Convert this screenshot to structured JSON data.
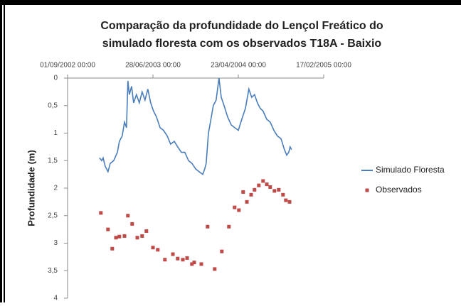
{
  "chart_data": {
    "type": "line",
    "title": [
      "Comparação da profundidade do Lençol Freático do",
      "simulado floresta com os observados T18A - Baixio"
    ],
    "y_label": "Profundidade (m)",
    "xlim": [
      "2002-09-01",
      "2005-02-17"
    ],
    "xticks": [
      {
        "value": "2002-09-01",
        "label": "01/09/2002 00:00"
      },
      {
        "value": "2003-06-28",
        "label": "28/06/2003 00:00"
      },
      {
        "value": "2004-04-23",
        "label": "23/04/2004 00:00"
      },
      {
        "value": "2005-02-17",
        "label": "17/02/2005 00:00"
      }
    ],
    "ylim": [
      0,
      4
    ],
    "y_inverted": true,
    "yticks": [
      0,
      {
        "value": 0.5,
        "label": "0,5"
      },
      1,
      {
        "value": 1.5,
        "label": "1,5"
      },
      2,
      {
        "value": 2.5,
        "label": "2,5"
      },
      3,
      {
        "value": 3.5,
        "label": "3,5"
      },
      4
    ],
    "grid": false,
    "legend": "right",
    "series": [
      {
        "name": "Simulado Floresta",
        "color": "#4a7ebb",
        "style": "line",
        "x": [
          "2002-12-22",
          "2002-12-30",
          "2003-01-04",
          "2003-01-11",
          "2003-01-21",
          "2003-01-29",
          "2003-02-10",
          "2003-02-23",
          "2003-03-02",
          "2003-03-12",
          "2003-03-20",
          "2003-03-27",
          "2003-04-01",
          "2003-04-06",
          "2003-04-14",
          "2003-04-21",
          "2003-05-01",
          "2003-05-11",
          "2003-05-21",
          "2003-05-31",
          "2003-06-10",
          "2003-06-20",
          "2003-06-30",
          "2003-07-10",
          "2003-07-23",
          "2003-08-04",
          "2003-08-17",
          "2003-08-29",
          "2003-09-11",
          "2003-09-23",
          "2003-10-06",
          "2003-10-18",
          "2003-10-31",
          "2003-11-12",
          "2003-11-25",
          "2003-12-07",
          "2003-12-20",
          "2003-12-27",
          "2004-01-01",
          "2004-01-09",
          "2004-01-16",
          "2004-01-26",
          "2004-02-05",
          "2004-02-15",
          "2004-02-23",
          "2004-03-04",
          "2004-03-16",
          "2004-03-29",
          "2004-04-10",
          "2004-04-23",
          "2004-05-05",
          "2004-05-18",
          "2004-05-30",
          "2004-06-09",
          "2004-06-19",
          "2004-06-29",
          "2004-07-09",
          "2004-07-19",
          "2004-08-01",
          "2004-08-13",
          "2004-08-26",
          "2004-09-07",
          "2004-09-20",
          "2004-10-02",
          "2004-10-10",
          "2004-10-17",
          "2004-10-22",
          "2004-10-27"
        ],
        "values": [
          1.45,
          1.5,
          1.45,
          1.6,
          1.7,
          1.55,
          1.5,
          1.35,
          1.15,
          1.05,
          0.8,
          0.9,
          0.05,
          0.3,
          0.15,
          0.45,
          0.3,
          0.45,
          0.25,
          0.4,
          0.2,
          0.45,
          0.6,
          0.7,
          0.9,
          0.95,
          1.05,
          1.2,
          1.15,
          1.25,
          1.35,
          1.35,
          1.5,
          1.55,
          1.65,
          1.7,
          1.75,
          1.65,
          1.55,
          1.0,
          0.8,
          0.5,
          0.4,
          0,
          0.35,
          0.5,
          0.7,
          0.85,
          0.9,
          0.95,
          0.75,
          0.55,
          0.2,
          0.35,
          0.3,
          0.45,
          0.55,
          0.6,
          0.75,
          0.8,
          0.95,
          1.05,
          1.1,
          1.3,
          1.4,
          1.35,
          1.25,
          1.3
        ]
      },
      {
        "name": "Observados",
        "color": "#be4b48",
        "style": "markers",
        "x": [
          "2002-12-27",
          "2003-01-21",
          "2003-02-05",
          "2003-02-18",
          "2003-03-02",
          "2003-03-20",
          "2003-04-01",
          "2003-04-16",
          "2003-05-04",
          "2003-05-21",
          "2003-06-05",
          "2003-06-28",
          "2003-07-15",
          "2003-08-09",
          "2003-09-06",
          "2003-09-23",
          "2003-10-11",
          "2003-10-26",
          "2003-11-12",
          "2003-11-20",
          "2003-12-15",
          "2004-01-06",
          "2004-01-31",
          "2004-02-25",
          "2004-03-21",
          "2004-04-10",
          "2004-04-25",
          "2004-05-10",
          "2004-05-23",
          "2004-06-07",
          "2004-06-19",
          "2004-07-04",
          "2004-07-19",
          "2004-08-01",
          "2004-08-13",
          "2004-08-28",
          "2004-09-12",
          "2004-09-27",
          "2004-10-07",
          "2004-10-20"
        ],
        "values": [
          2.45,
          2.75,
          3.1,
          2.9,
          2.88,
          2.87,
          2.5,
          2.65,
          2.9,
          2.87,
          2.78,
          3.08,
          3.12,
          3.3,
          3.2,
          3.28,
          3.3,
          3.27,
          3.38,
          3.35,
          3.38,
          2.7,
          3.47,
          3.15,
          2.7,
          2.35,
          2.4,
          2.07,
          2.25,
          2.12,
          2.03,
          1.95,
          1.87,
          1.93,
          1.98,
          2.05,
          2.03,
          2.12,
          2.22,
          2.25
        ]
      }
    ]
  }
}
